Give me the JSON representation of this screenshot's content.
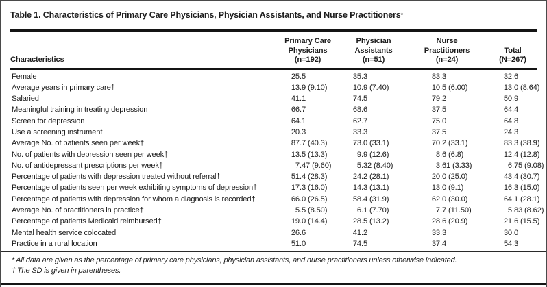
{
  "title": {
    "text": "Table 1. Characteristics of Primary Care Physicians, Physician Assistants, and Nurse Practitioners",
    "marker": "*"
  },
  "colors": {
    "background": "#ffffff",
    "text": "#1c1c1c",
    "rule": "#141414"
  },
  "table": {
    "row_header": "Characteristics",
    "columns": [
      {
        "label": "Primary Care\nPhysicians\n(n=192)"
      },
      {
        "label": "Physician\nAssistants\n(n=51)"
      },
      {
        "label": "Nurse\nPractitioners\n(n=24)"
      },
      {
        "label": "Total\n(N=267)"
      }
    ],
    "rows": [
      {
        "label": "Female",
        "values": [
          "25.5",
          "35.3",
          "83.3",
          "32.6"
        ]
      },
      {
        "label": "Average years in primary care†",
        "values": [
          "13.9 (9.10)",
          "10.9 (7.40)",
          "10.5 (6.00)",
          "13.0 (8.64)"
        ]
      },
      {
        "label": "Salaried",
        "values": [
          "41.1",
          "74.5",
          "79.2",
          "50.9"
        ]
      },
      {
        "label": "Meaningful training in treating depression",
        "values": [
          "66.7",
          "68.6",
          "37.5",
          "64.4"
        ]
      },
      {
        "label": "Screen for depression",
        "values": [
          "64.1",
          "62.7",
          "75.0",
          "64.8"
        ]
      },
      {
        "label": "Use a screening instrument",
        "values": [
          "20.3",
          "33.3",
          "37.5",
          "24.3"
        ]
      },
      {
        "label": "Average No. of patients seen per week†",
        "values": [
          "87.7 (40.3)",
          "73.0 (33.1)",
          "70.2 (33.1)",
          "83.3 (38.9)"
        ]
      },
      {
        "label": "No. of patients with depression seen per week†",
        "values": [
          "13.5 (13.3)",
          "9.9 (12.6)",
          "8.6 (6.8)",
          "12.4 (12.8)"
        ]
      },
      {
        "label": "No. of antidepressant prescriptions per week†",
        "values": [
          "7.47 (9.60)",
          "5.32 (8.40)",
          "3.61 (3.33)",
          "6.75 (9.08)"
        ]
      },
      {
        "label": "Percentage of patients with depression treated without referral†",
        "values": [
          "51.4 (28.3)",
          "24.2 (28.1)",
          "20.0 (25.0)",
          "43.4 (30.7)"
        ]
      },
      {
        "label": "Percentage of patients seen per week exhibiting symptoms of depression†",
        "values": [
          "17.3 (16.0)",
          "14.3 (13.1)",
          "13.0 (9.1)",
          "16.3 (15.0)"
        ]
      },
      {
        "label": "Percentage of patients with depression for whom a diagnosis is recorded†",
        "values": [
          "66.0 (26.5)",
          "58.4 (31.9)",
          "62.0 (30.0)",
          "64.1 (28.1)"
        ]
      },
      {
        "label": "Average No. of practitioners in practice†",
        "values": [
          "5.5 (8.50)",
          "6.1 (7.70)",
          "7.7 (11.50)",
          "5.83 (8.62)"
        ]
      },
      {
        "label": "Percentage of patients Medicaid reimbursed†",
        "values": [
          "19.0 (14.4)",
          "28.5 (13.2)",
          "28.6 (20.9)",
          "21.6 (15.5)"
        ]
      },
      {
        "label": "Mental health service colocated",
        "values": [
          "26.6",
          "41.2",
          "33.3",
          "30.0"
        ]
      },
      {
        "label": "Practice in a rural location",
        "values": [
          "51.0",
          "74.5",
          "37.4",
          "54.3"
        ]
      }
    ]
  },
  "footnotes": [
    {
      "marker": "*",
      "text": "All data are given as the percentage of primary care physicians, physician assistants, and nurse practitioners unless otherwise indicated."
    },
    {
      "marker": "†",
      "text": "The SD is given in parentheses."
    }
  ]
}
